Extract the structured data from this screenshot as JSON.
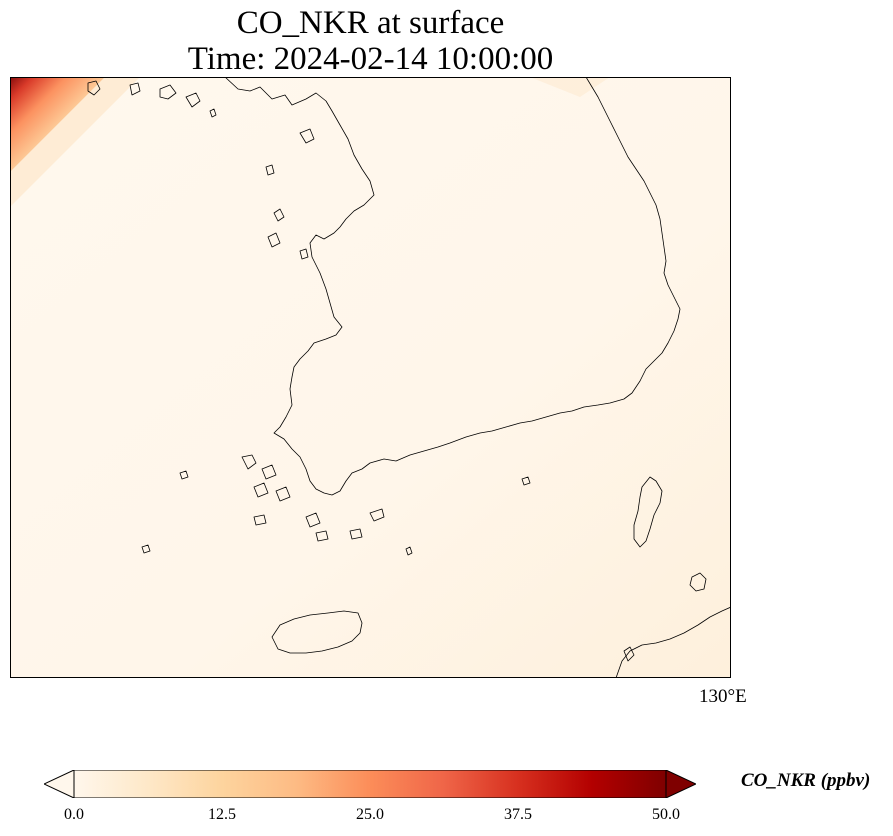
{
  "title": {
    "line1": "CO_NKR at surface",
    "line2": "Time: 2024-02-14 10:00:00"
  },
  "map": {
    "lon_tick_label": "130°E",
    "boundary_color": "#000000",
    "background_color": "#fff6ea"
  },
  "colorbar": {
    "label": "CO_NKR (ppbv)",
    "ticks": [
      "0.0",
      "12.5",
      "25.0",
      "37.5",
      "50.0"
    ],
    "min": 0,
    "max": 50,
    "extend": "both",
    "colormap": "OrRd",
    "colors": [
      "#fff7ec",
      "#fee8c8",
      "#fdd49e",
      "#fdbb84",
      "#fc8d59",
      "#ef6548",
      "#d7301f",
      "#b30000",
      "#7f0000"
    ]
  }
}
